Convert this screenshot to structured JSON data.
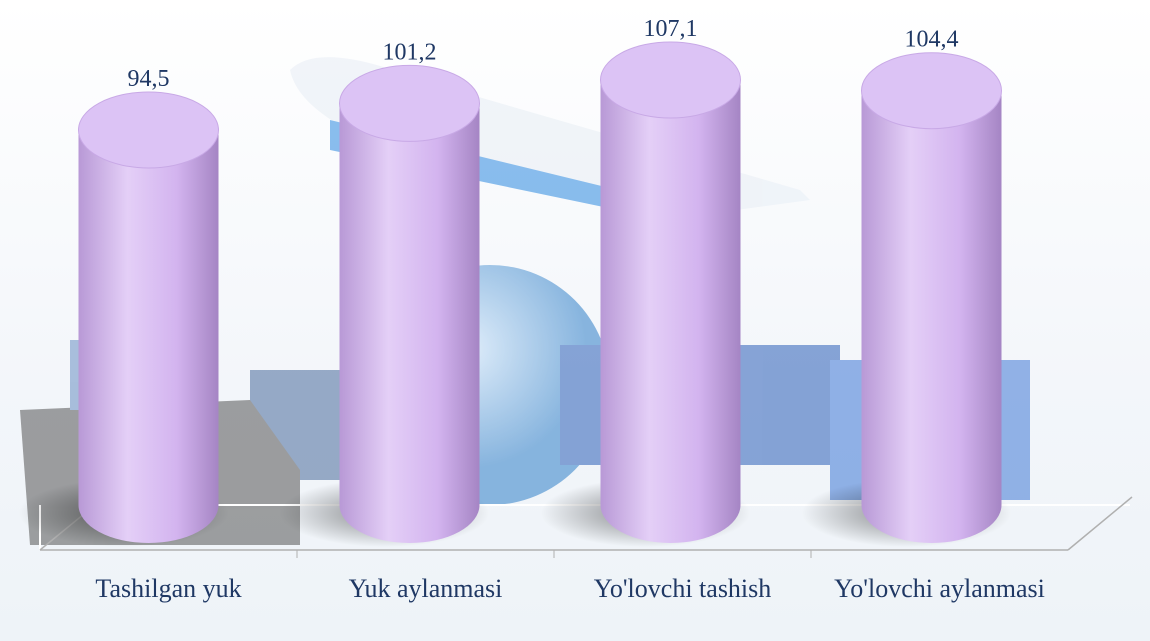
{
  "chart_data": {
    "type": "bar",
    "categories": [
      "Tashilgan yuk",
      "Yuk aylanmasi",
      "Yo'lovchi tashish",
      "Yo'lovchi aylanmasi"
    ],
    "values": [
      94.5,
      101.2,
      107.1,
      104.4
    ],
    "value_labels": [
      "94,5",
      "101,2",
      "107,1",
      "104,4"
    ],
    "color": "#d7b9f2"
  }
}
